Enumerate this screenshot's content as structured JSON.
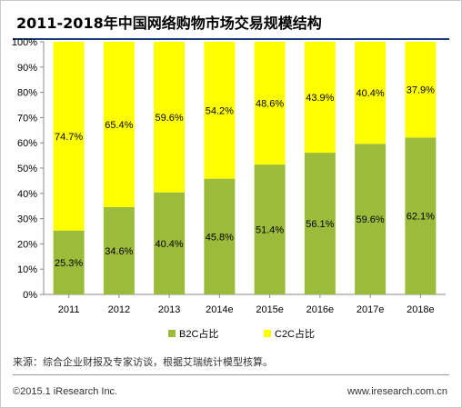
{
  "title": "2011-2018年中国网络购物市场交易规模结构",
  "source": "来源：综合企业财报及专家访谈，根据艾瑞统计模型核算。",
  "copyright": "©2015.1 iResearch Inc.",
  "website": "www.iresearch.com.cn",
  "colors": {
    "b2c": "#9bbb3b",
    "c2c": "#ffff00",
    "title_bar": "#1a3e7a"
  },
  "chart_data": {
    "type": "bar",
    "stacked": true,
    "categories": [
      "2011",
      "2012",
      "2013",
      "2014e",
      "2015e",
      "2016e",
      "2017e",
      "2018e"
    ],
    "series": [
      {
        "name": "B2C占比",
        "values": [
          25.3,
          34.6,
          40.4,
          45.8,
          51.4,
          56.1,
          59.6,
          62.1
        ],
        "labels": [
          "25.3%",
          "34.6%",
          "40.4%",
          "45.8%",
          "51.4%",
          "56.1%",
          "59.6%",
          "62.1%"
        ]
      },
      {
        "name": "C2C占比",
        "values": [
          74.7,
          65.4,
          59.6,
          54.2,
          48.6,
          43.9,
          40.4,
          37.9
        ],
        "labels": [
          "74.7%",
          "65.4%",
          "59.6%",
          "54.2%",
          "48.6%",
          "43.9%",
          "40.4%",
          "37.9%"
        ]
      }
    ],
    "yticks": [
      "0%",
      "10%",
      "20%",
      "30%",
      "40%",
      "50%",
      "60%",
      "70%",
      "80%",
      "90%",
      "100%"
    ],
    "ylim": [
      0,
      100
    ],
    "grid": false,
    "legend": "bottom"
  }
}
